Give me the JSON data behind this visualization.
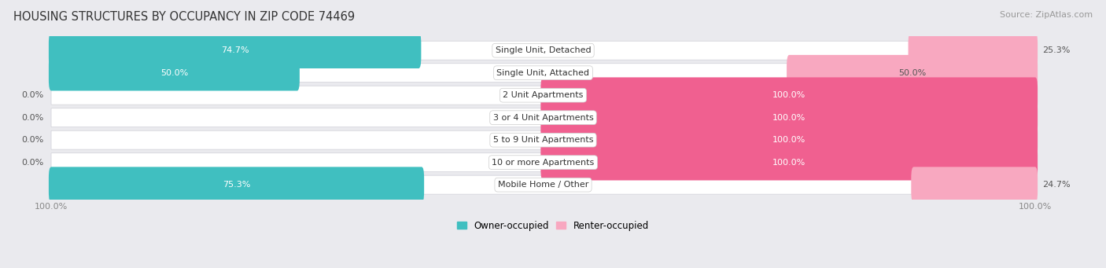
{
  "title": "HOUSING STRUCTURES BY OCCUPANCY IN ZIP CODE 74469",
  "source": "Source: ZipAtlas.com",
  "categories": [
    "Single Unit, Detached",
    "Single Unit, Attached",
    "2 Unit Apartments",
    "3 or 4 Unit Apartments",
    "5 to 9 Unit Apartments",
    "10 or more Apartments",
    "Mobile Home / Other"
  ],
  "owner_pct": [
    74.7,
    50.0,
    0.0,
    0.0,
    0.0,
    0.0,
    75.3
  ],
  "renter_pct": [
    25.3,
    50.0,
    100.0,
    100.0,
    100.0,
    100.0,
    24.7
  ],
  "owner_color": "#40BFC0",
  "renter_color_full": "#F06090",
  "renter_color_partial": "#F8A8C0",
  "row_bg_color": "#E8E8EC",
  "bg_color": "#EAEAEE",
  "title_fontsize": 10.5,
  "label_fontsize": 8,
  "tick_fontsize": 8,
  "legend_fontsize": 8.5,
  "source_fontsize": 8
}
